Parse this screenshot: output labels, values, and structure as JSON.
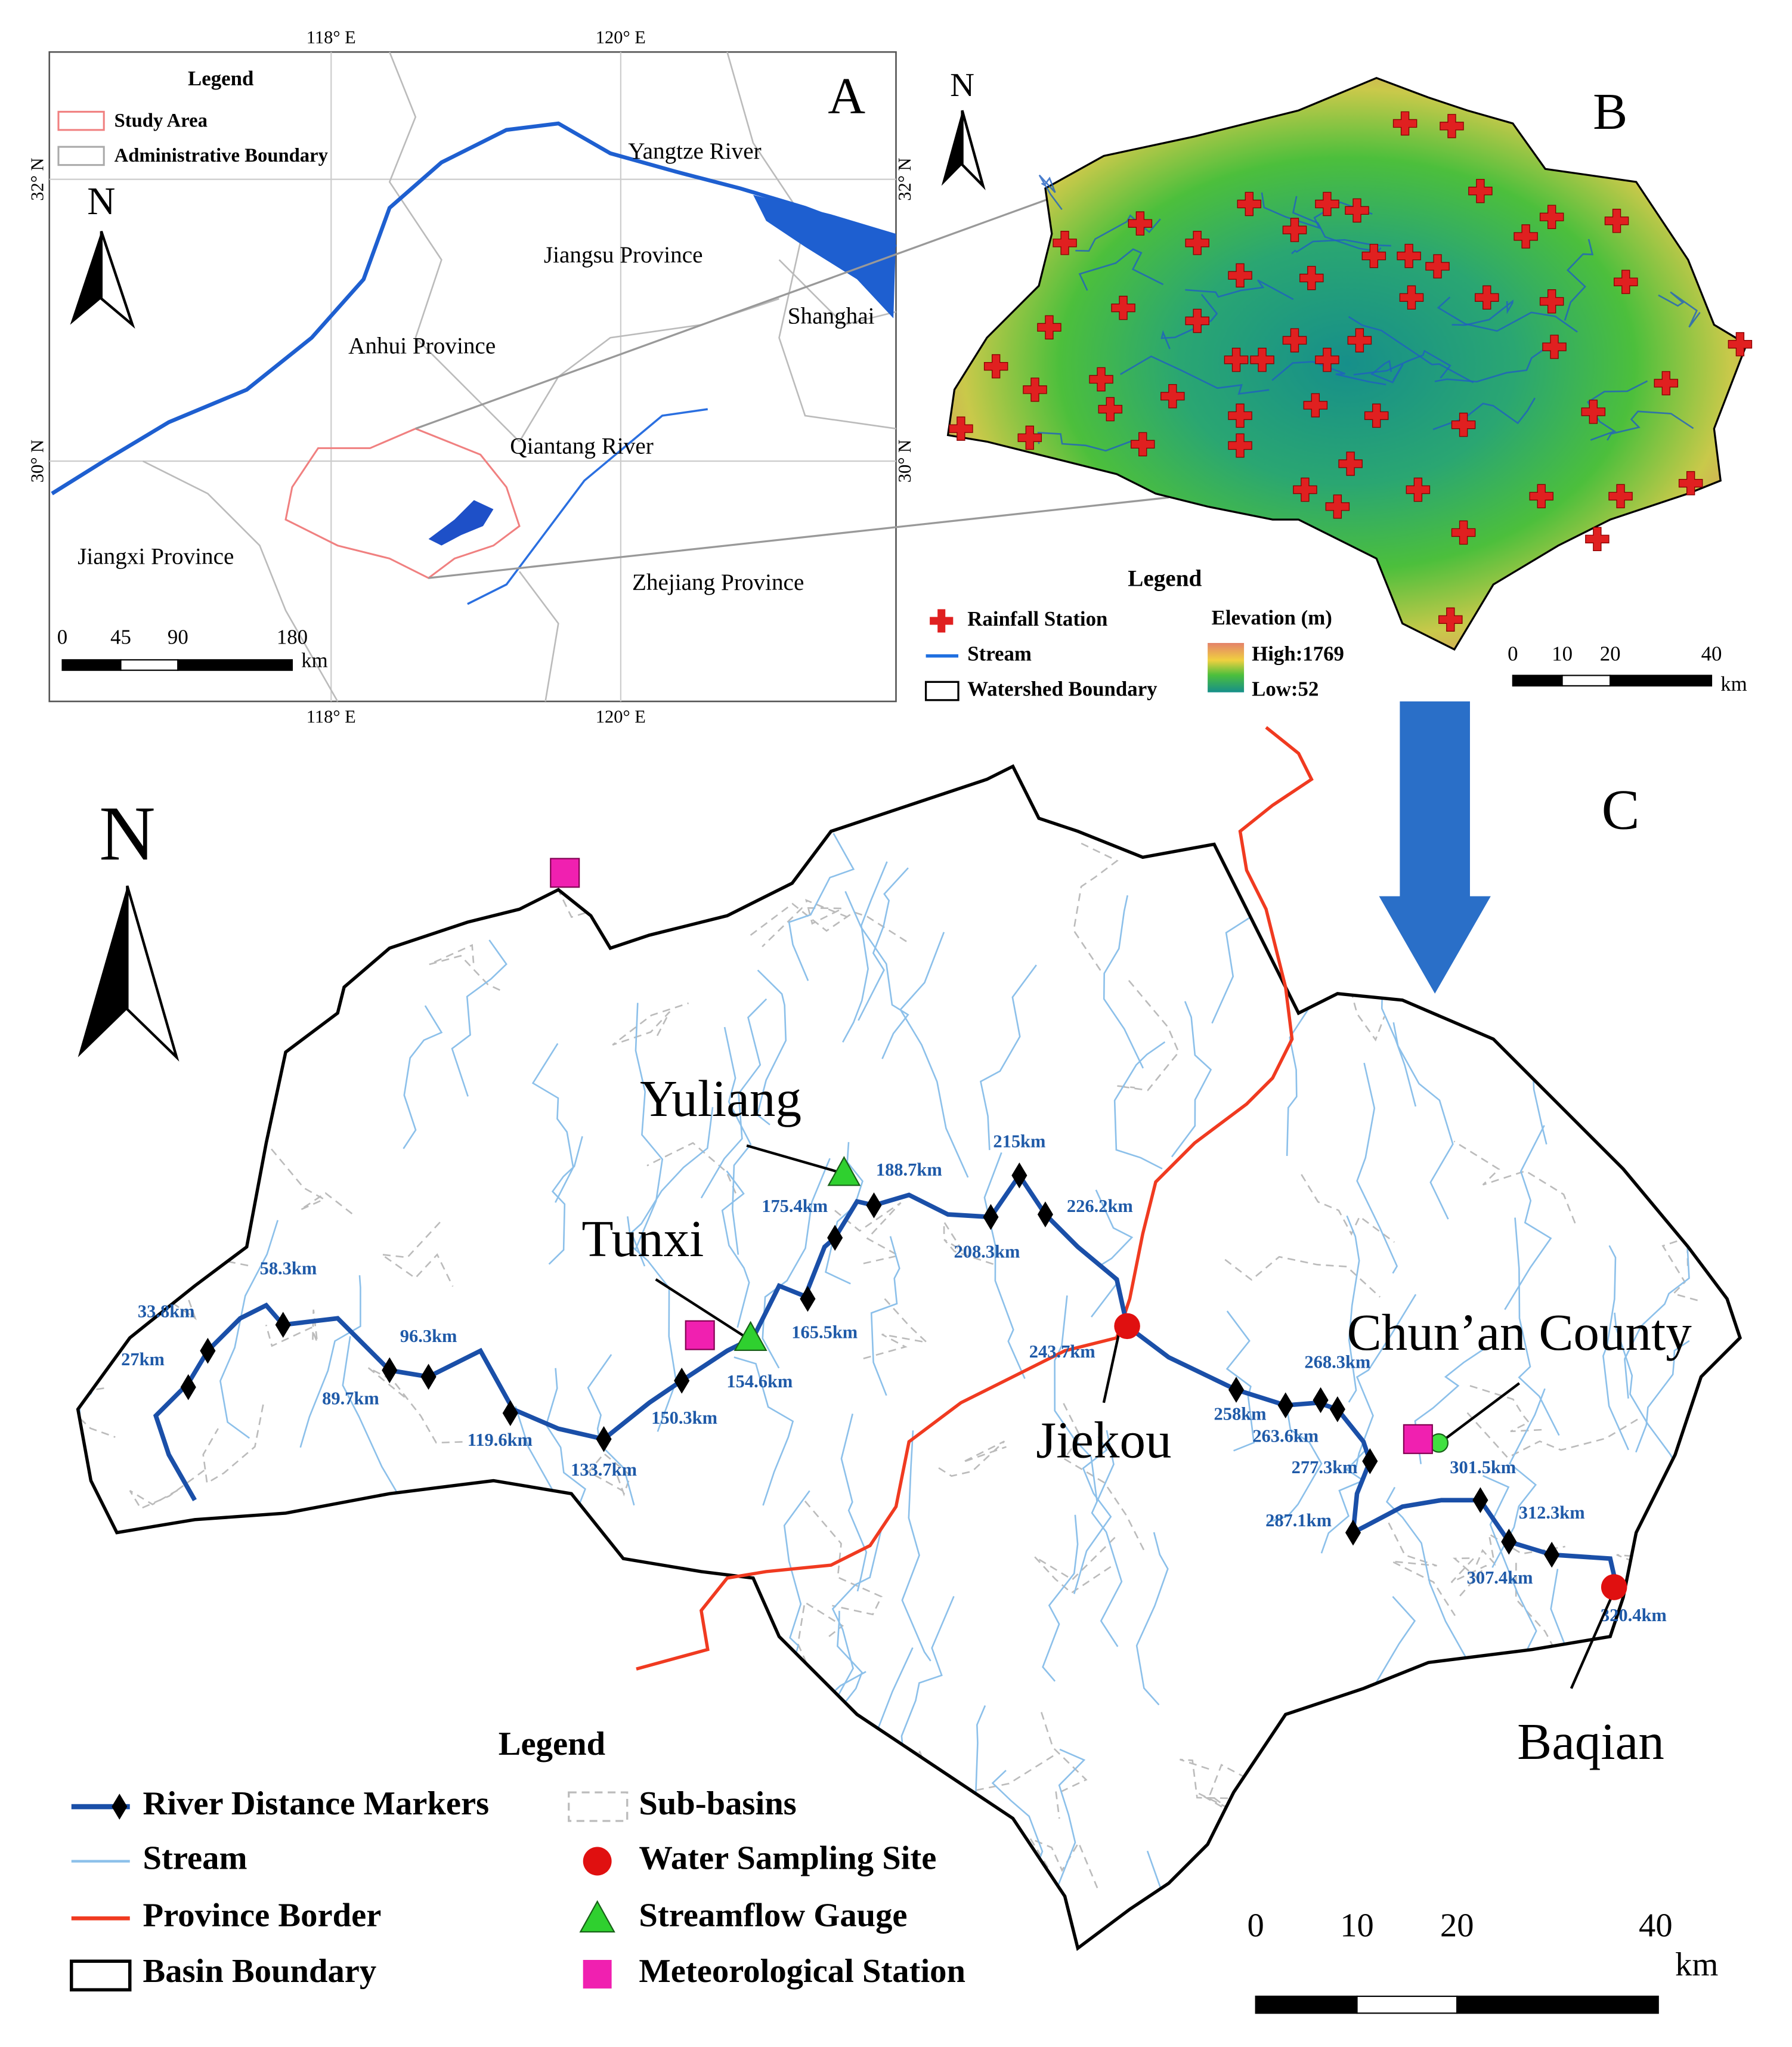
{
  "panel_a": {
    "letter": "A",
    "legend": {
      "title": "Legend",
      "items": [
        "Study Area",
        "Administrative Boundary"
      ]
    },
    "longitudes": [
      "118° E",
      "120° E"
    ],
    "latitudes": [
      "32° N",
      "30° N"
    ],
    "places": [
      "Yangtze River",
      "Jiangsu Province",
      "Anhui Province",
      "Shanghai",
      "Qiantang River",
      "Jiangxi Province",
      "Zhejiang Province"
    ],
    "north": "N",
    "scale": {
      "labels": [
        "0",
        "45",
        "90",
        "180"
      ],
      "unit": "km"
    }
  },
  "panel_b": {
    "letter": "B",
    "north": "N",
    "legend": {
      "title": "Legend",
      "items": [
        "Rainfall Station",
        "Stream",
        "Watershed Boundary"
      ],
      "elevation_title": "Elevation (m)",
      "high": "High:1769",
      "low": "Low:52"
    },
    "scale": {
      "labels": [
        "0",
        "10",
        "20",
        "40"
      ],
      "unit": "km"
    }
  },
  "panel_c": {
    "letter": "C",
    "north": "N",
    "places": [
      "Yuliang",
      "Tunxi",
      "Jiekou",
      "Chun’an County",
      "Baqian"
    ],
    "distance_labels": [
      "27km",
      "33.8km",
      "58.3km",
      "89.7km",
      "96.3km",
      "119.6km",
      "133.7km",
      "150.3km",
      "154.6km",
      "165.5km",
      "175.4km",
      "188.7km",
      "208.3km",
      "215km",
      "226.2km",
      "243.7km",
      "258km",
      "263.6km",
      "268.3km",
      "277.3km",
      "287.1km",
      "301.5km",
      "307.4km",
      "312.3km",
      "320.4km"
    ],
    "legend": {
      "title": "Legend",
      "items": [
        "River Distance Markers",
        "Stream",
        "Province Border",
        "Basin Boundary",
        "Sub-basins",
        "Water Sampling Site",
        "Streamflow Gauge",
        "Meteorological Station"
      ]
    },
    "scale": {
      "labels": [
        "0",
        "10",
        "20",
        "40"
      ],
      "unit": "km"
    }
  }
}
